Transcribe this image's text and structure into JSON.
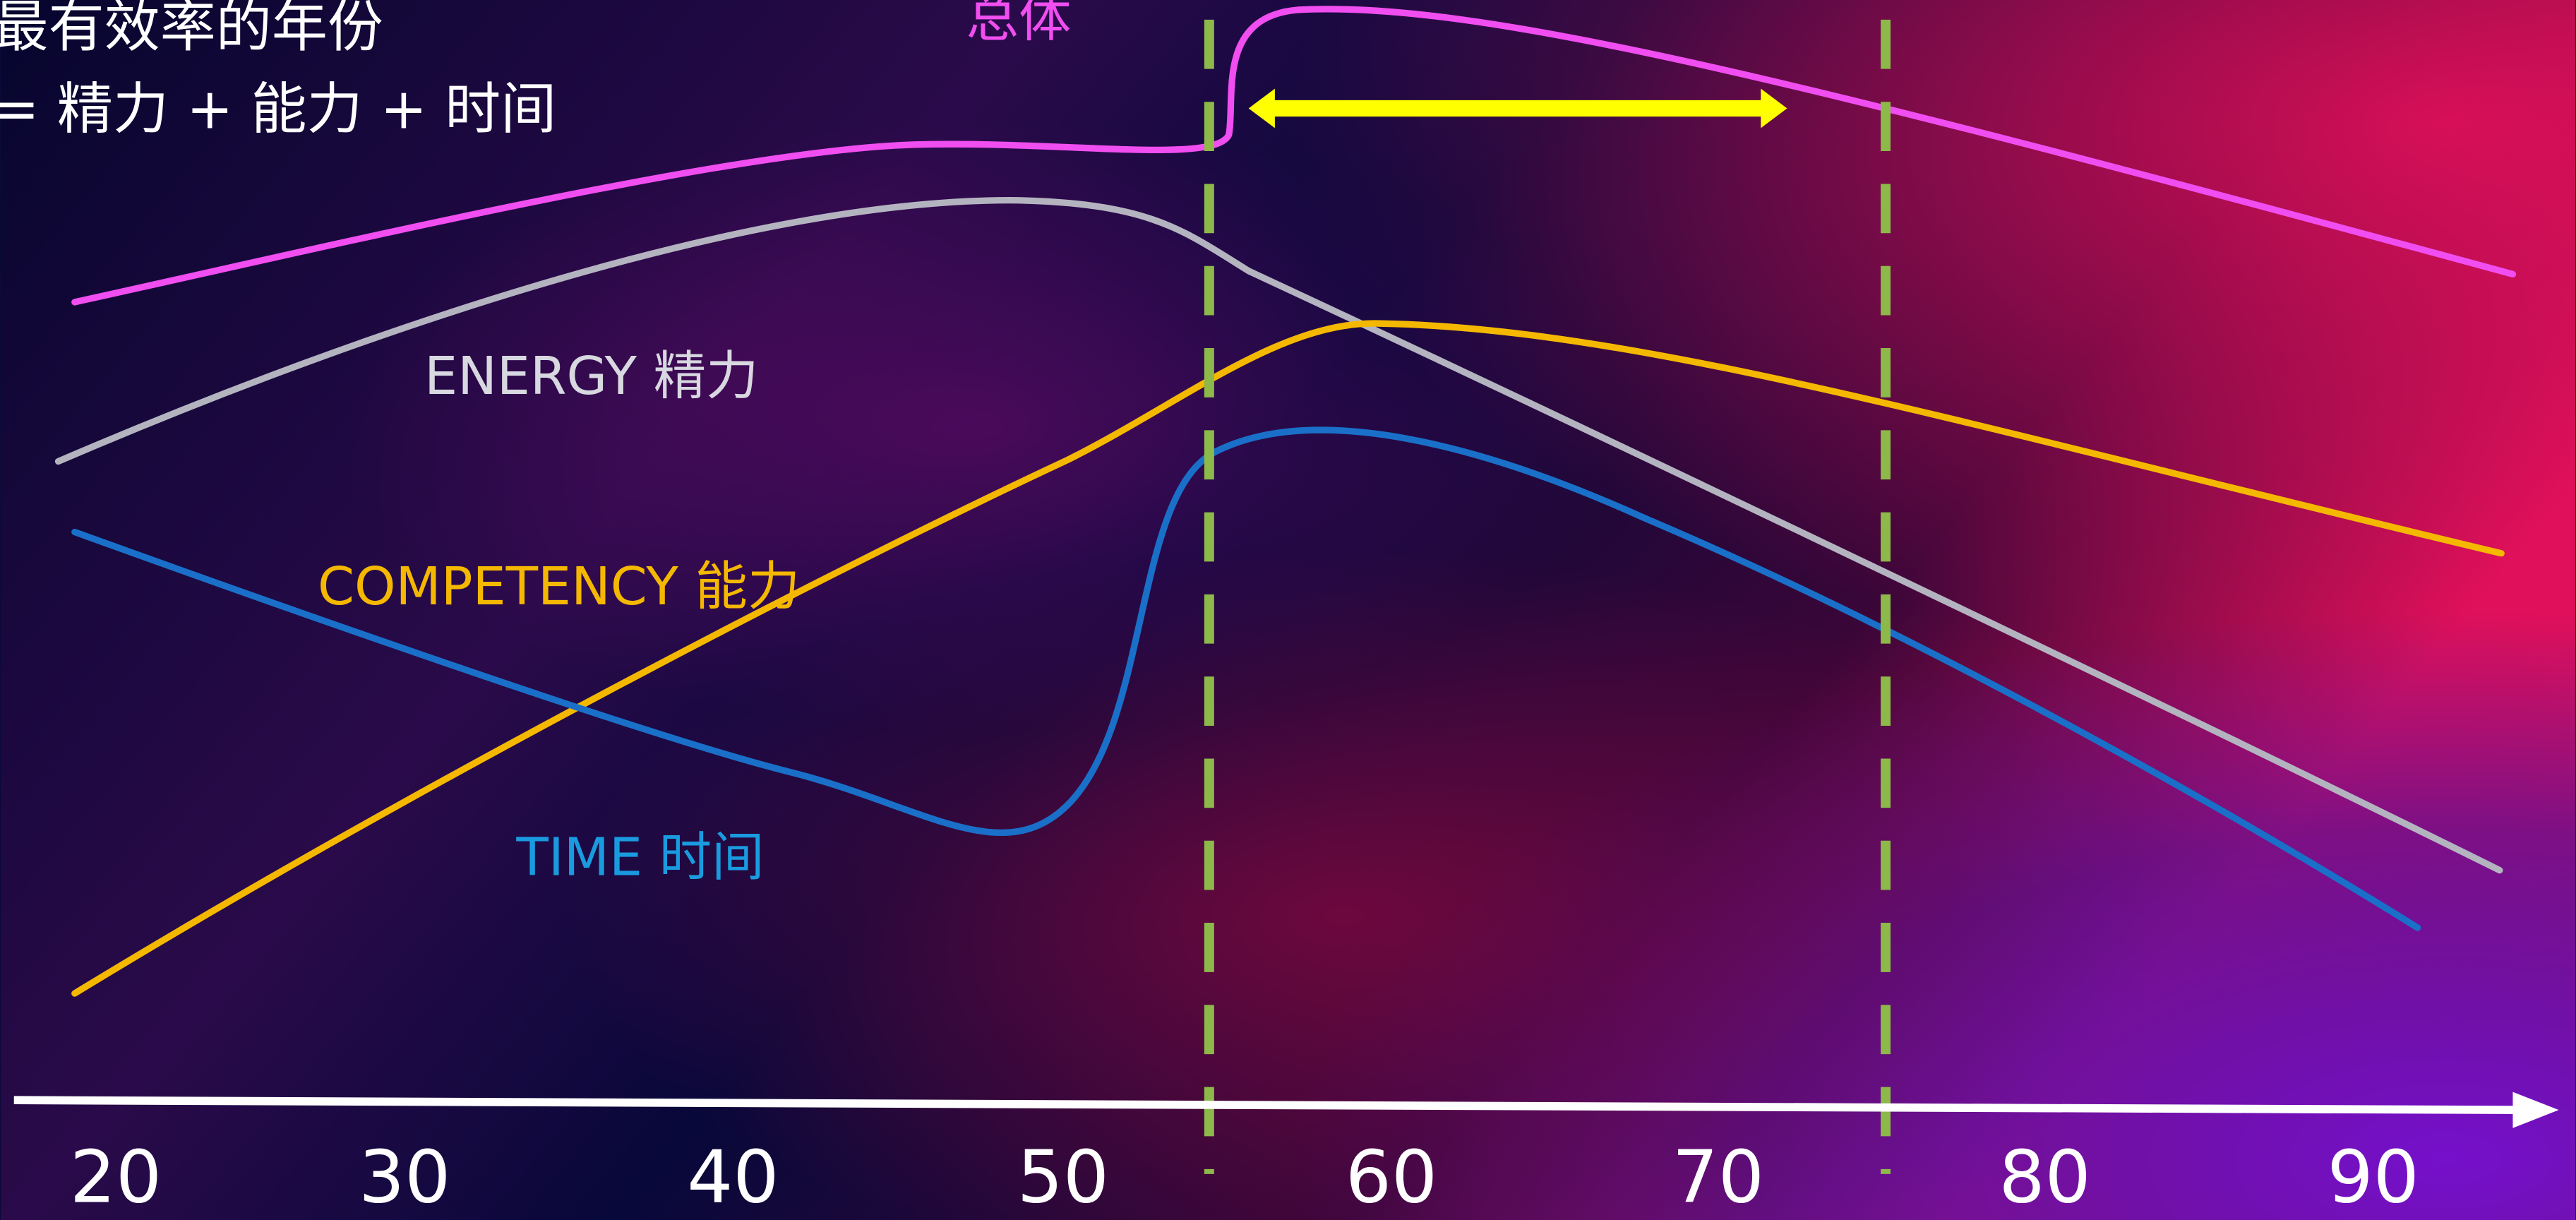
{
  "title_lines": [
    "最有效率的年份",
    "= 精力 + 能力 + 时间"
  ],
  "labels": {
    "overall": "总体",
    "energy": "ENERGY 精力",
    "competency": "COMPETENCY 能力",
    "time": "TIME 时间"
  },
  "x_axis": {
    "ticks": [
      20,
      30,
      40,
      50,
      60,
      70,
      80,
      90
    ]
  }
}
